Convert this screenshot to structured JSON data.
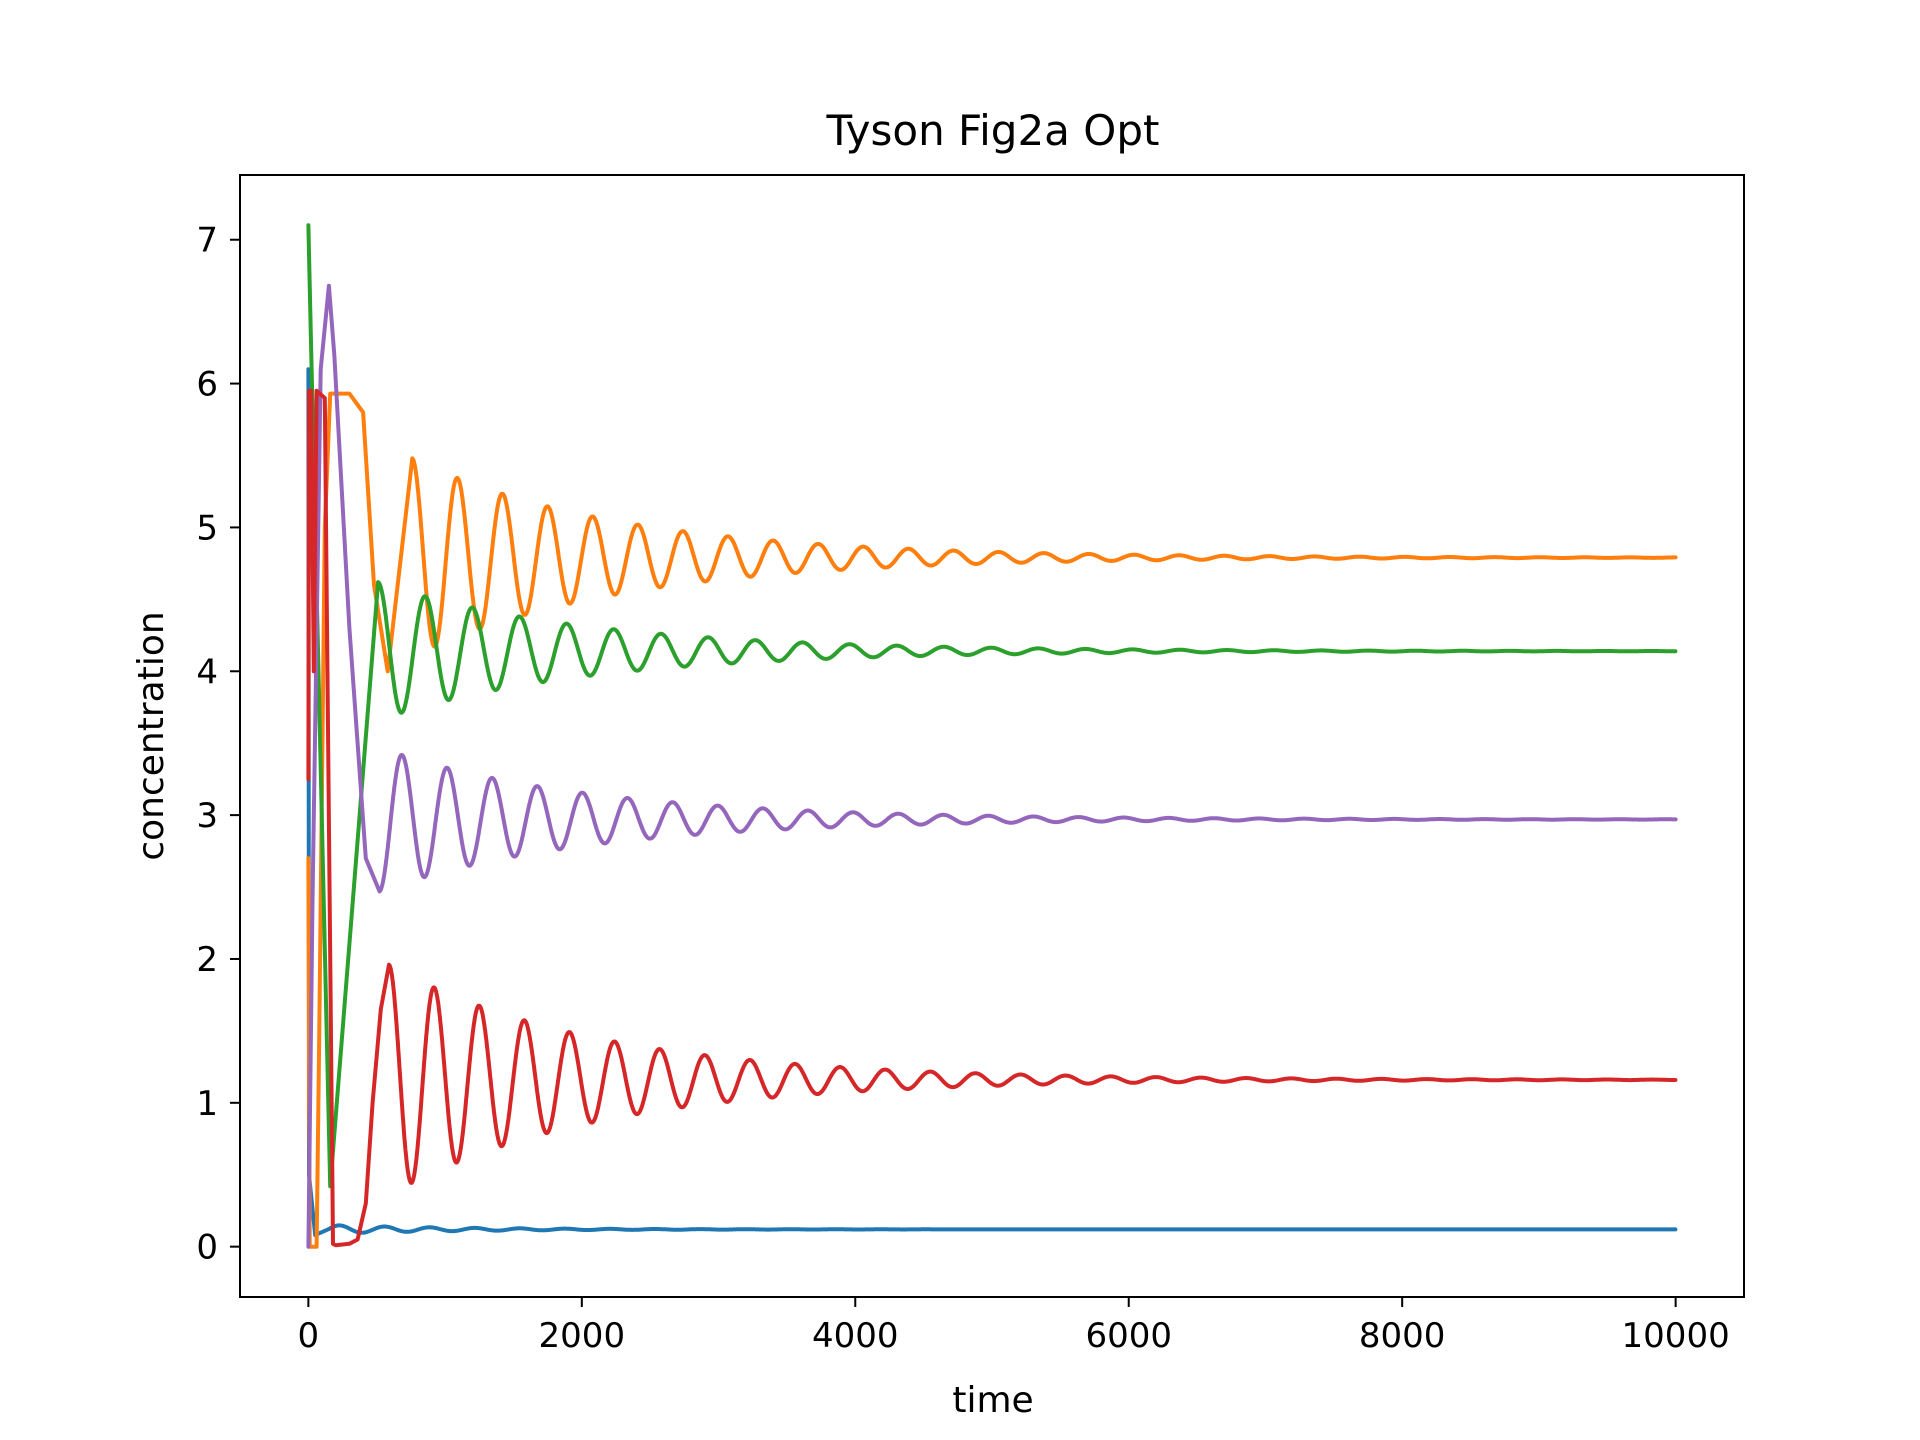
{
  "chart_data": {
    "type": "line",
    "title": "Tyson Fig2a Opt",
    "xlabel": "time",
    "ylabel": "concentration",
    "xlim": [
      -500,
      10500
    ],
    "ylim": [
      -0.35,
      7.45
    ],
    "xticks": [
      0,
      2000,
      4000,
      6000,
      8000,
      10000
    ],
    "yticks": [
      0,
      1,
      2,
      3,
      4,
      5,
      6,
      7
    ],
    "grid": false,
    "legend": "none",
    "series": [
      {
        "color": "#1f77b4",
        "initial": {
          "x": [
            0,
            5,
            50
          ],
          "y": [
            6.1,
            0.5,
            0.08
          ]
        },
        "spikes": [],
        "osc": {
          "start": 150,
          "steady": 0.12,
          "amp": 0.03,
          "period": 330,
          "decay": 1000,
          "phase": -1.5
        }
      },
      {
        "color": "#ff7f0e",
        "initial": {
          "x": [
            0,
            10,
            60,
            80,
            120,
            160,
            300,
            400,
            480,
            580,
            760
          ],
          "y": [
            2.7,
            0.0,
            0.0,
            1.5,
            5.0,
            5.93,
            5.93,
            5.8,
            4.6,
            4.0,
            5.48
          ]
        },
        "spikes": [],
        "osc": {
          "start": 760,
          "steady": 4.79,
          "amp": 0.69,
          "period": 330,
          "decay": 1500,
          "phase": 0
        }
      },
      {
        "color": "#2ca02c",
        "initial": {
          "x": [
            0,
            5,
            160,
            510
          ],
          "y": [
            7.1,
            6.9,
            0.42,
            4.62
          ]
        },
        "spikes": [],
        "osc": {
          "start": 510,
          "steady": 4.14,
          "amp": 0.48,
          "period": 345,
          "decay": 1500,
          "phase": 0
        }
      },
      {
        "color": "#9467bd",
        "initial": {
          "x": [
            0,
            30,
            90,
            150,
            190,
            300,
            420,
            520
          ],
          "y": [
            0.0,
            2.4,
            6.1,
            6.68,
            6.2,
            4.3,
            2.7,
            2.47
          ]
        },
        "spikes": [],
        "osc": {
          "start": 520,
          "steady": 2.97,
          "amp": 0.5,
          "period": 330,
          "decay": 1500,
          "phase": 3.14159
        }
      },
      {
        "color": "#d62728",
        "initial": {
          "x": [
            0,
            5,
            20,
            40,
            60,
            120,
            180,
            200,
            300,
            360,
            420,
            470,
            530,
            590
          ],
          "y": [
            3.25,
            5.95,
            5.95,
            4.0,
            5.95,
            5.9,
            0.02,
            0.01,
            0.02,
            0.05,
            0.3,
            1.0,
            1.65,
            1.96
          ]
        },
        "spikes": [],
        "osc": {
          "start": 590,
          "steady": 1.16,
          "amp": 0.8,
          "period": 330,
          "decay": 1500,
          "phase": 0
        }
      }
    ]
  }
}
